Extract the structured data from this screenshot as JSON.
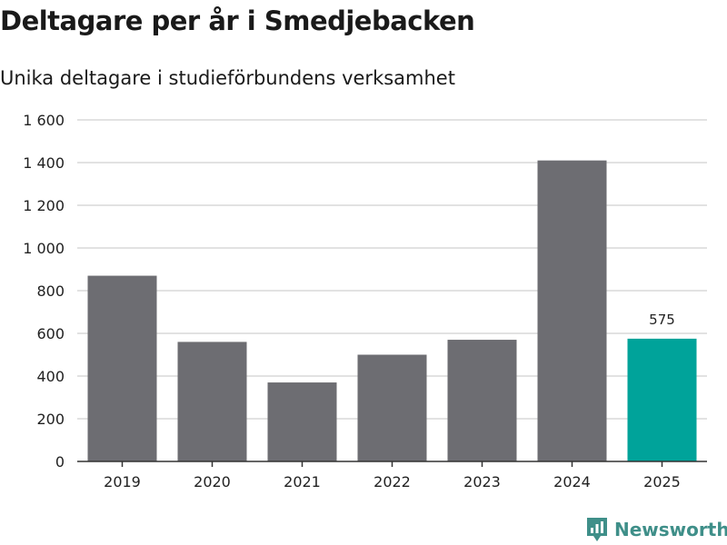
{
  "title": "Deltagare per år i Smedjebacken",
  "subtitle": "Unika deltagare i studieförbundens verksamhet",
  "brand": {
    "name": "Newsworthy",
    "icon": "newsworthy-logo-icon"
  },
  "colors": {
    "bar": "#6d6d72",
    "highlight": "#00a39a",
    "grid": "#d9d9d9",
    "axis": "#333333",
    "brand": "#3f8f89"
  },
  "chart_data": {
    "type": "bar",
    "title": "Deltagare per år i Smedjebacken",
    "subtitle": "Unika deltagare i studieförbundens verksamhet",
    "xlabel": "",
    "ylabel": "",
    "categories": [
      "2019",
      "2020",
      "2021",
      "2022",
      "2023",
      "2024",
      "2025"
    ],
    "values": [
      870,
      560,
      370,
      500,
      570,
      1410,
      575
    ],
    "highlight_index": 6,
    "data_labels": [
      {
        "index": 6,
        "text": "575"
      }
    ],
    "ylim": [
      0,
      1600
    ],
    "yticks": [
      0,
      200,
      400,
      600,
      800,
      1000,
      1200,
      1400,
      1600
    ],
    "ytick_labels": [
      "0",
      "200",
      "400",
      "600",
      "800",
      "1 000",
      "1 200",
      "1 400",
      "1 600"
    ],
    "grid": true,
    "legend": "none"
  }
}
